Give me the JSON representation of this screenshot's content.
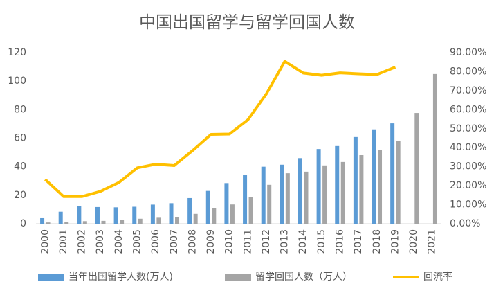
{
  "chart_data": {
    "type": "bar",
    "title": "中国出国留学与留学回国人数",
    "categories": [
      "2000",
      "2001",
      "2002",
      "2003",
      "2004",
      "2005",
      "2006",
      "2007",
      "2008",
      "2009",
      "2010",
      "2011",
      "2012",
      "2013",
      "2014",
      "2015",
      "2016",
      "2017",
      "2018",
      "2019",
      "2020",
      "2021"
    ],
    "series": [
      {
        "name": "当年出国留学人数(万人)",
        "type": "bar",
        "color": "#5b9bd5",
        "values": [
          3.9,
          8.4,
          12.5,
          11.7,
          11.5,
          11.9,
          13.4,
          14.4,
          18.0,
          23.0,
          28.5,
          34.0,
          40.0,
          41.4,
          46.0,
          52.4,
          54.5,
          60.8,
          66.2,
          70.4,
          null,
          null
        ]
      },
      {
        "name": "留学回国人数（万人）",
        "type": "bar",
        "color": "#a5a5a5",
        "values": [
          0.9,
          1.2,
          1.8,
          2.0,
          2.5,
          3.5,
          4.2,
          4.4,
          6.9,
          10.8,
          13.5,
          18.6,
          27.3,
          35.4,
          36.5,
          40.9,
          43.3,
          48.1,
          51.9,
          58.0,
          77.7,
          105.0
        ]
      },
      {
        "name": "回流率",
        "type": "line",
        "axis": "y2",
        "color": "#ffc000",
        "values": [
          23.3,
          14.3,
          14.3,
          17.0,
          21.7,
          29.4,
          31.3,
          30.6,
          38.5,
          47.0,
          47.2,
          54.7,
          68.3,
          85.4,
          79.3,
          78.1,
          79.4,
          78.9,
          78.5,
          82.4,
          null,
          null
        ]
      }
    ],
    "ylim": [
      0,
      120
    ],
    "yticks": [
      0,
      20,
      40,
      60,
      80,
      100,
      120
    ],
    "y2lim": [
      0,
      90
    ],
    "y2ticks": [
      {
        "value": 0,
        "label": "0.00%"
      },
      {
        "value": 10,
        "label": "10.00%"
      },
      {
        "value": 20,
        "label": "20.00%"
      },
      {
        "value": 30,
        "label": "30.00%"
      },
      {
        "value": 40,
        "label": "40.00%"
      },
      {
        "value": 50,
        "label": "50.00%"
      },
      {
        "value": 60,
        "label": "60.00%"
      },
      {
        "value": 70,
        "label": "70.00%"
      },
      {
        "value": 80,
        "label": "80.00%"
      },
      {
        "value": 90,
        "label": "90.00%"
      }
    ],
    "grid": false,
    "legend": "bottom"
  }
}
